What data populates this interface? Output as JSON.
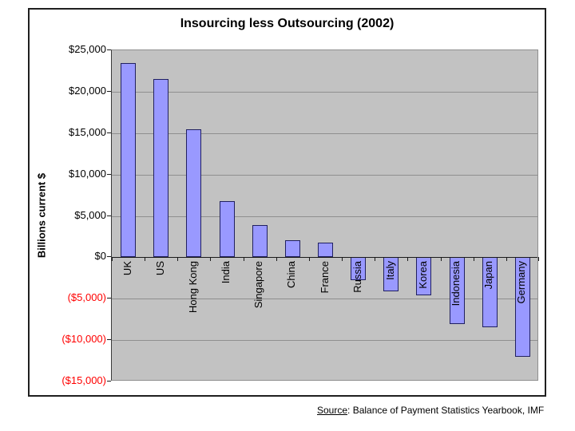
{
  "slide": {
    "title": "Insourcing less Outsourcing (2002)",
    "y_axis_title": "Billions current $",
    "source_word": "Source",
    "source_rest": ": Balance of Payment Statistics Yearbook, IMF"
  },
  "chart_data": {
    "type": "bar",
    "title": "Insourcing less Outsourcing (2002)",
    "xlabel": "",
    "ylabel": "Billions current $",
    "ylim": [
      -15000,
      25000
    ],
    "ytick_step": 5000,
    "ytick_labels": [
      "$25,000",
      "$20,000",
      "$15,000",
      "$10,000",
      "$5,000",
      "$0",
      "($5,000)",
      "($10,000)",
      "($15,000)"
    ],
    "ytick_values": [
      25000,
      20000,
      15000,
      10000,
      5000,
      0,
      -5000,
      -10000,
      -15000
    ],
    "categories": [
      "UK",
      "US",
      "Hong Kong",
      "India",
      "Singapore",
      "China",
      "France",
      "Russia",
      "Italy",
      "Korea",
      "Indonesia",
      "Japan",
      "Germany"
    ],
    "values": [
      23500,
      21500,
      15500,
      6800,
      3900,
      2100,
      1800,
      -2800,
      -4100,
      -4600,
      -8100,
      -8400,
      -12000
    ],
    "grid": true,
    "legend": "none",
    "colors": {
      "bar_fill": "#9999ff",
      "bar_border": "#202060",
      "plot_background": "#c2c2c2",
      "gridline": "#8f8f8f",
      "negative_tick_label": "#ff0000"
    }
  }
}
